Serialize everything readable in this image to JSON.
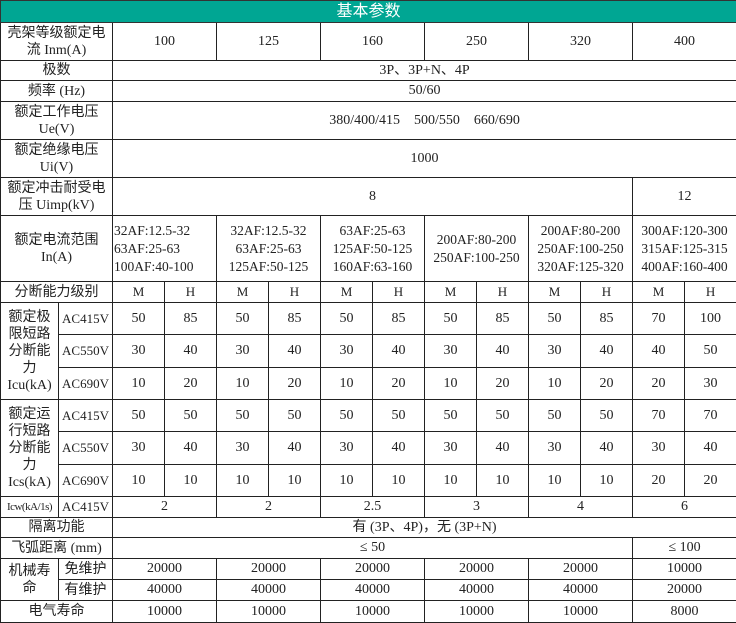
{
  "title": "基本参数",
  "colors": {
    "header_bg": "#00a693",
    "header_text": "#ffffff"
  },
  "frame": {
    "label": "壳架等级额定电流 Inm(A)",
    "values": [
      "100",
      "125",
      "160",
      "250",
      "320",
      "400"
    ]
  },
  "poles": {
    "label": "极数",
    "value": "3P、3P+N、4P"
  },
  "frequency": {
    "label": "频率 (Hz)",
    "value": "50/60"
  },
  "ue": {
    "label": "额定工作电压Ue(V)",
    "value": "380/400/415    500/550    660/690"
  },
  "ui": {
    "label": "额定绝缘电压Ui(V)",
    "value": "1000"
  },
  "uimp": {
    "label": "额定冲击耐受电压 Uimp(kV)",
    "values": [
      "8",
      "12"
    ]
  },
  "current_range": {
    "label": "额定电流范围In(A)",
    "values": [
      [
        "32AF:12.5-32",
        "63AF:25-63",
        "100AF:40-100"
      ],
      [
        "32AF:12.5-32",
        "63AF:25-63",
        "125AF:50-125"
      ],
      [
        "63AF:25-63",
        "125AF:50-125",
        "160AF:63-160"
      ],
      [
        "200AF:80-200",
        "250AF:100-250"
      ],
      [
        "200AF:80-200",
        "250AF:100-250",
        "320AF:125-320"
      ],
      [
        "300AF:120-300",
        "315AF:125-315",
        "400AF:160-400"
      ]
    ]
  },
  "grade": {
    "label": "分断能力级别",
    "values": [
      "M",
      "H",
      "M",
      "H",
      "M",
      "H",
      "M",
      "H",
      "M",
      "H",
      "M",
      "H"
    ]
  },
  "icu": {
    "label": "额定极限短路分断能力Icu(kA)",
    "rows": [
      {
        "voltage": "AC415V",
        "values": [
          "50",
          "85",
          "50",
          "85",
          "50",
          "85",
          "50",
          "85",
          "50",
          "85",
          "70",
          "100"
        ]
      },
      {
        "voltage": "AC550V",
        "values": [
          "30",
          "40",
          "30",
          "40",
          "30",
          "40",
          "30",
          "40",
          "30",
          "40",
          "40",
          "50"
        ]
      },
      {
        "voltage": "AC690V",
        "values": [
          "10",
          "20",
          "10",
          "20",
          "10",
          "20",
          "10",
          "20",
          "10",
          "20",
          "20",
          "30"
        ]
      }
    ]
  },
  "ics": {
    "label": "额定运行短路分断能力Ics(kA)",
    "rows": [
      {
        "voltage": "AC415V",
        "values": [
          "50",
          "50",
          "50",
          "50",
          "50",
          "50",
          "50",
          "50",
          "50",
          "50",
          "70",
          "70"
        ]
      },
      {
        "voltage": "AC550V",
        "values": [
          "30",
          "40",
          "30",
          "40",
          "30",
          "40",
          "30",
          "40",
          "30",
          "40",
          "30",
          "40"
        ]
      },
      {
        "voltage": "AC690V",
        "values": [
          "10",
          "10",
          "10",
          "10",
          "10",
          "10",
          "10",
          "10",
          "10",
          "10",
          "20",
          "20"
        ]
      }
    ]
  },
  "icw": {
    "label": "Icw(kA/1s)",
    "voltage": "AC415V",
    "values": [
      "2",
      "2",
      "2.5",
      "3",
      "4",
      "6"
    ]
  },
  "isolation": {
    "label": "隔离功能",
    "value": "有 (3P、4P)，无 (3P+N)"
  },
  "arc": {
    "label": "飞弧距离 (mm)",
    "values": [
      "≤ 50",
      "≤ 100"
    ]
  },
  "mechanical": {
    "label": "机械寿命",
    "rows": [
      {
        "label": "免维护",
        "values": [
          "20000",
          "20000",
          "20000",
          "20000",
          "20000",
          "10000"
        ]
      },
      {
        "label": "有维护",
        "values": [
          "40000",
          "40000",
          "40000",
          "40000",
          "40000",
          "20000"
        ]
      }
    ]
  },
  "electrical": {
    "label": "电气寿命",
    "values": [
      "10000",
      "10000",
      "10000",
      "10000",
      "10000",
      "8000"
    ]
  }
}
